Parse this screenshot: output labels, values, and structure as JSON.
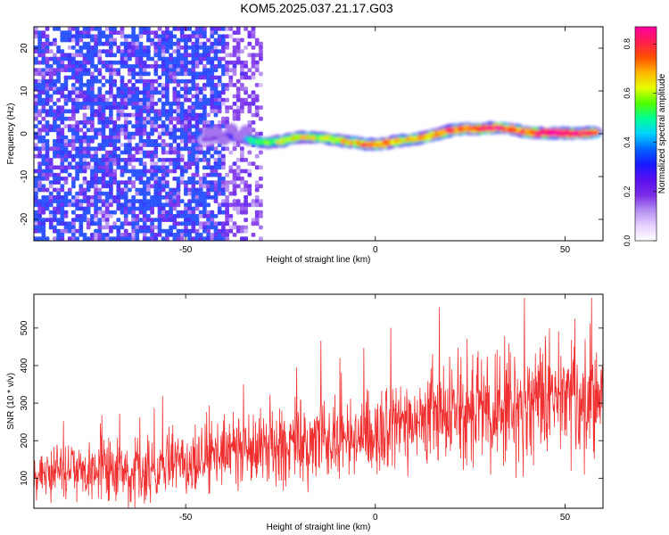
{
  "page_title": "KOM5.2025.037.21.17.G03",
  "chart_data": [
    {
      "type": "heatmap",
      "title": "KOM5.2025.037.21.17.G03",
      "xlabel": "Height of straight line (km)",
      "ylabel": "Frequency (Hz)",
      "xlim": [
        -90,
        60
      ],
      "ylim": [
        -25,
        25
      ],
      "x_ticks": [
        -50,
        0,
        50
      ],
      "y_ticks": [
        -20,
        -10,
        0,
        10,
        20
      ],
      "grid": false,
      "colorbar": {
        "label": "Normalized spectral amplitude",
        "range": [
          0,
          0.87
        ],
        "ticks": [
          "0.0",
          "0.2",
          "0.4",
          "0.6",
          "0.8"
        ],
        "colormap": [
          "#ffffff",
          "#e6d2ff",
          "#b48cf0",
          "#7a2be6",
          "#5a10f0",
          "#1a1aff",
          "#0064ff",
          "#00d2ff",
          "#00ff96",
          "#50ff00",
          "#e6ff00",
          "#ffb400",
          "#ff5000",
          "#ff1e50",
          "#ff00a0"
        ]
      },
      "ridge": {
        "x": [
          -45,
          -40,
          -35,
          -32,
          -28,
          -24,
          -20,
          -16,
          -12,
          -8,
          -4,
          0,
          4,
          8,
          12,
          16,
          20,
          24,
          28,
          32,
          36,
          40,
          44,
          48,
          52,
          56,
          58
        ],
        "f": [
          -1.2,
          -0.6,
          -0.8,
          -1.8,
          -2.0,
          -1.6,
          -0.8,
          -0.8,
          -1.2,
          -1.8,
          -2.2,
          -2.6,
          -2.0,
          -1.4,
          -1.0,
          -0.2,
          0.8,
          1.2,
          1.0,
          1.6,
          1.0,
          0.4,
          0.2,
          0.2,
          0.0,
          0.2,
          0.2
        ],
        "amp": [
          0.15,
          0.22,
          0.35,
          0.5,
          0.55,
          0.6,
          0.62,
          0.6,
          0.58,
          0.62,
          0.68,
          0.75,
          0.7,
          0.65,
          0.68,
          0.72,
          0.78,
          0.74,
          0.8,
          0.82,
          0.7,
          0.75,
          0.85,
          0.87,
          0.86,
          0.8,
          0.7
        ]
      }
    },
    {
      "type": "line",
      "xlabel": "Height of straight line (km)",
      "ylabel": "SNR (10 * v/v)",
      "xlim": [
        -90,
        60
      ],
      "ylim": [
        20,
        590
      ],
      "x_ticks": [
        -50,
        0,
        50
      ],
      "y_ticks": [
        100,
        200,
        300,
        400,
        500
      ],
      "grid": false,
      "color": "#f03030",
      "trend": {
        "x": [
          -90,
          -60,
          -40,
          -20,
          0,
          20,
          40,
          60
        ],
        "mean": [
          110,
          120,
          160,
          195,
          225,
          270,
          300,
          320
        ],
        "band": [
          60,
          70,
          80,
          90,
          95,
          110,
          130,
          140
        ]
      },
      "samples": 1500,
      "max_value": 580
    }
  ]
}
